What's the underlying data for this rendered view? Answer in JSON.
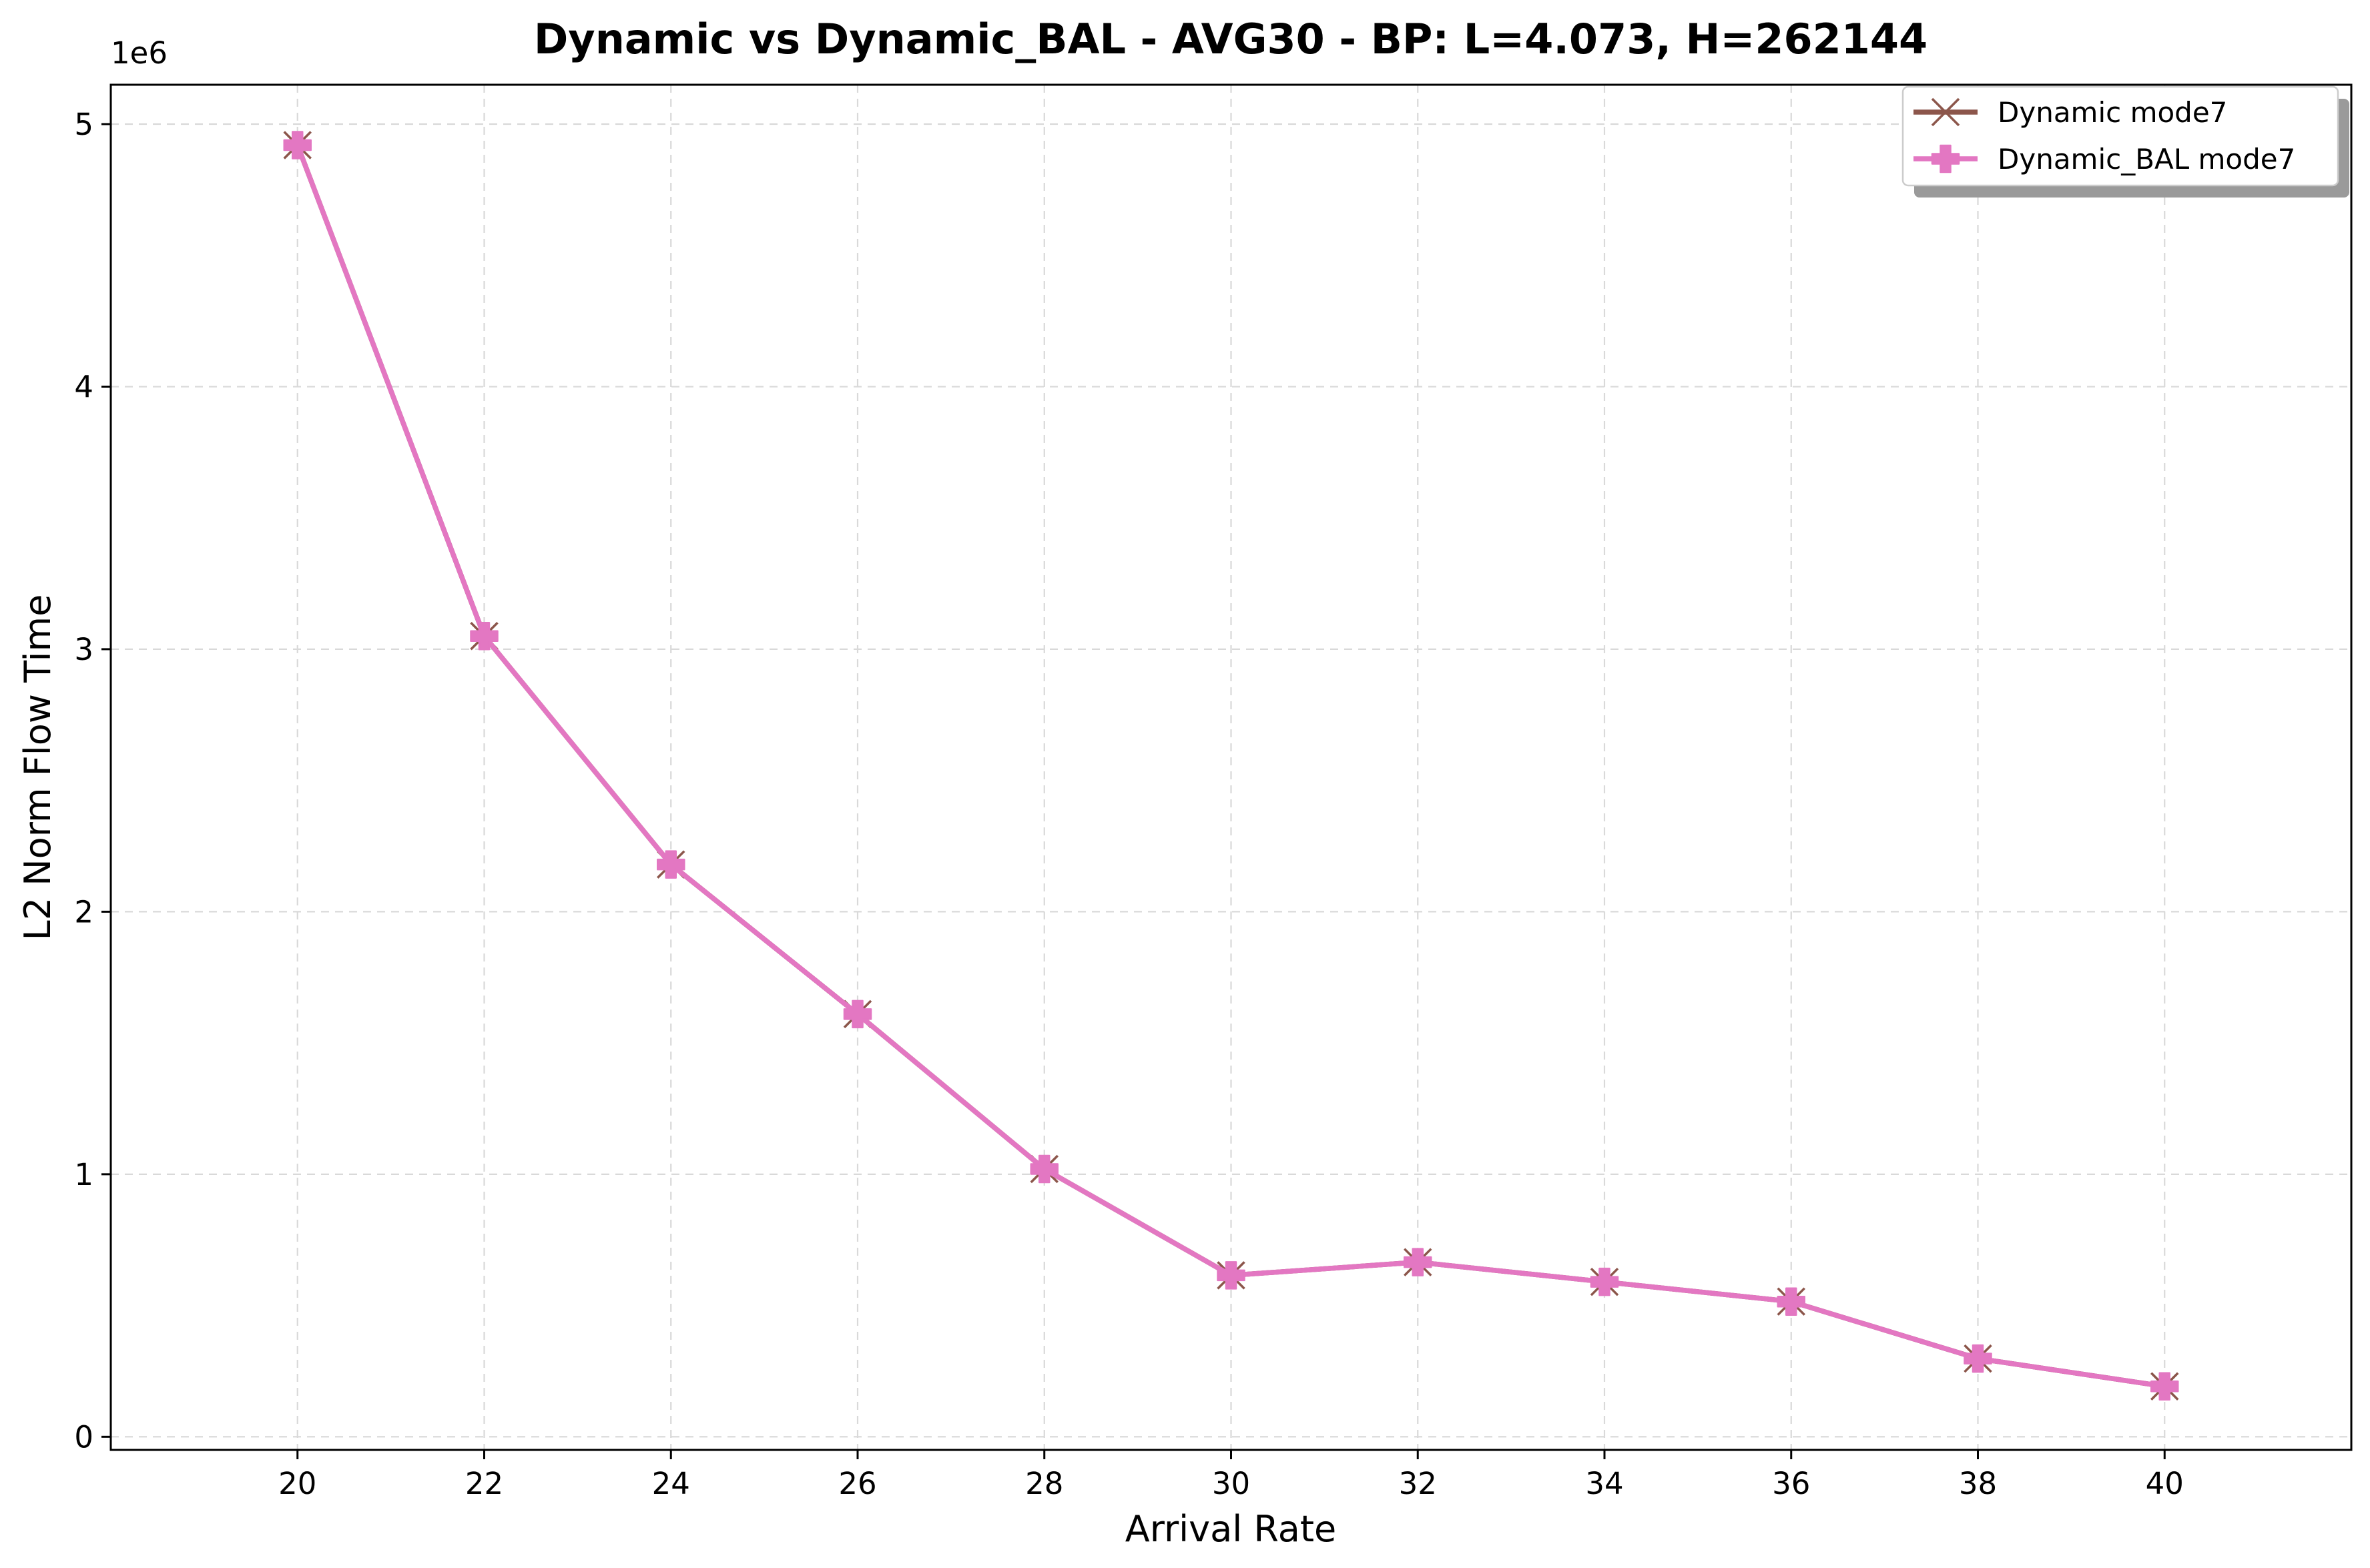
{
  "chart_data": {
    "type": "line",
    "title": "Dynamic vs Dynamic_BAL - AVG30 - BP: L=4.073, H=262144",
    "xlabel": "Arrival Rate",
    "ylabel": "L2 Norm Flow Time",
    "y_offset_label": "1e6",
    "x": [
      20,
      22,
      24,
      26,
      28,
      30,
      32,
      34,
      36,
      38,
      40
    ],
    "x_ticks": [
      "20",
      "22",
      "24",
      "26",
      "28",
      "30",
      "32",
      "34",
      "36",
      "38",
      "40"
    ],
    "y_ticks": [
      "0",
      "1",
      "2",
      "3",
      "4",
      "5"
    ],
    "xlim": [
      18,
      42
    ],
    "ylim": [
      -50000,
      5150000
    ],
    "grid": true,
    "legend_position": "top-right",
    "series": [
      {
        "name": "Dynamic mode7",
        "color": "#8c564b",
        "marker": "x",
        "values": [
          4920000,
          3050000,
          2180000,
          1610000,
          1020000,
          615000,
          665000,
          590000,
          515000,
          298000,
          192000
        ]
      },
      {
        "name": "Dynamic_BAL mode7",
        "color": "#e377c2",
        "marker": "P",
        "values": [
          4920000,
          3050000,
          2180000,
          1610000,
          1020000,
          615000,
          665000,
          590000,
          515000,
          298000,
          192000
        ]
      }
    ]
  }
}
